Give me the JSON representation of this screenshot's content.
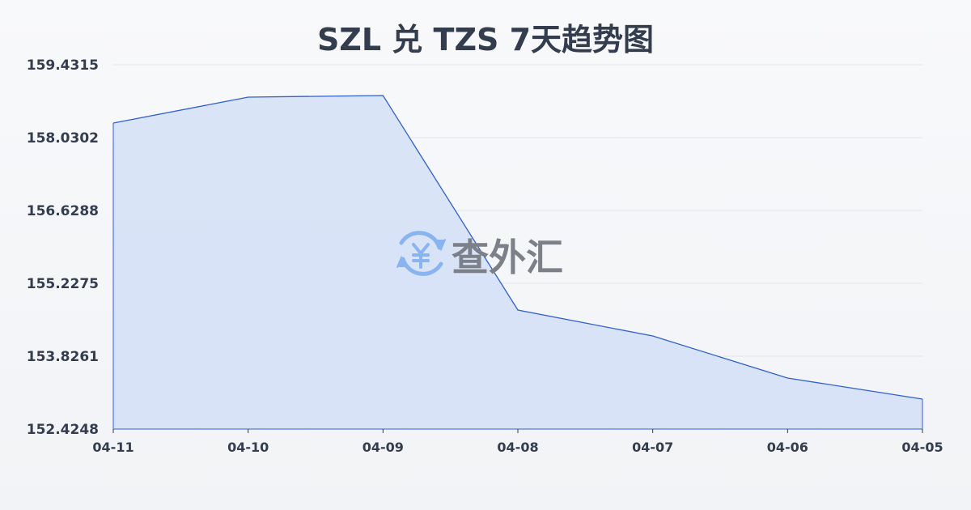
{
  "chart_data": {
    "type": "area",
    "title": "SZL 兑 TZS 7天趋势图",
    "xlabel": "",
    "ylabel": "",
    "categories": [
      "04-11",
      "04-10",
      "04-09",
      "04-08",
      "04-07",
      "04-06",
      "04-05"
    ],
    "values": [
      158.31,
      158.809,
      158.84,
      154.714,
      154.215,
      153.406,
      153.001
    ],
    "ylim": [
      152.4248,
      159.4315
    ],
    "yticks": [
      "159.4315",
      "158.0302",
      "156.6288",
      "155.2275",
      "153.8261",
      "152.4248"
    ],
    "grid": true,
    "line_color": "#2f5fce",
    "fill_color": "#d6e1f6"
  },
  "watermark": {
    "text": "查外汇",
    "icon": "yen-exchange-icon",
    "icon_color": "#8ab4f0",
    "text_color": "#7c8088"
  }
}
